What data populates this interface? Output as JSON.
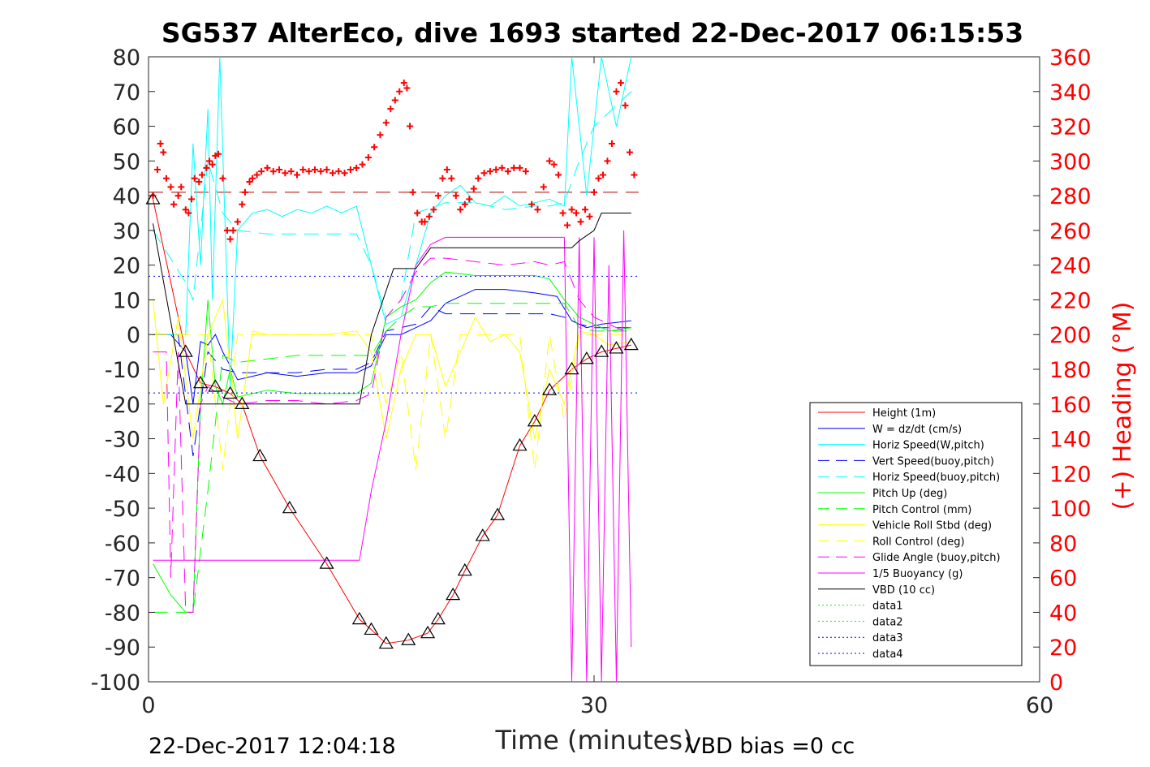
{
  "chart_data": {
    "type": "line",
    "title": "SG537 AlterEco, dive 1693 started 22-Dec-2017 06:15:53",
    "xlabel": "Time (minutes)",
    "ylabel_right": "(+) Heading (°M)",
    "xlim": [
      0,
      60
    ],
    "ylim": [
      -100,
      80
    ],
    "ylim_right": [
      0,
      360
    ],
    "x_ticks": [
      "0",
      "30",
      "60"
    ],
    "y_ticks": [
      "80",
      "70",
      "60",
      "50",
      "40",
      "30",
      "20",
      "10",
      "0",
      "-10",
      "-20",
      "-30",
      "-40",
      "-50",
      "-60",
      "-70",
      "-80",
      "-90",
      "-100"
    ],
    "y_ticks_right": [
      "360",
      "340",
      "320",
      "300",
      "280",
      "260",
      "240",
      "220",
      "200",
      "180",
      "160",
      "140",
      "120",
      "100",
      "80",
      "60",
      "40",
      "20",
      "0"
    ],
    "footer_left": "22-Dec-2017 12:04:18",
    "footer_right": "VBD bias =0 cc",
    "legend_position": "bottom-right",
    "grid": false,
    "heading_reference": 282,
    "series": [
      {
        "name": "Height (1m)",
        "color": "#ff0000",
        "style": "solid",
        "x": [
          0.3,
          2.5,
          3.5,
          4.5,
          5.5,
          6.3,
          7.5,
          9.5,
          12,
          14.2,
          15,
          16,
          17.5,
          18.8,
          19.5,
          20.5,
          21.3,
          22.5,
          23.5,
          25,
          26,
          27,
          28.5,
          29.5,
          30.5,
          31.5,
          32.5
        ],
        "y": [
          39,
          -5,
          -14,
          -15,
          -17,
          -20,
          -35,
          -50,
          -66,
          -82,
          -85,
          -89,
          -88,
          -86,
          -82,
          -75,
          -68,
          -58,
          -52,
          -32,
          -25,
          -16,
          -10,
          -7,
          -5,
          -4,
          -3
        ]
      },
      {
        "name": "W = dz/dt (cm/s)",
        "color": "#0000ff",
        "style": "solid",
        "x": [
          0.3,
          1.5,
          2.5,
          3,
          3.5,
          4,
          4.5,
          5,
          6,
          7,
          8,
          10,
          12,
          14,
          15,
          16,
          17,
          18,
          19,
          20,
          22,
          24,
          26,
          27.5,
          28.5,
          29.5,
          30.5,
          32.5
        ],
        "y": [
          0,
          0,
          -5,
          -20,
          -2,
          -3,
          0,
          -5,
          -13,
          -12,
          -11,
          -12,
          -11,
          -11,
          -9,
          0,
          0,
          2,
          4,
          9,
          13,
          13,
          12,
          11,
          4,
          2,
          3,
          4
        ]
      },
      {
        "name": "Horiz Speed(W,pitch)",
        "color": "#00ffff",
        "style": "solid",
        "x": [
          0.3,
          2.5,
          3,
          3.5,
          4,
          4.3,
          4.8,
          5.5,
          6,
          7,
          8,
          9,
          10,
          11,
          12,
          13,
          14,
          15,
          16,
          17,
          18,
          19,
          20,
          21,
          22,
          23,
          24,
          25,
          26,
          27,
          28,
          28.5,
          29.5,
          30.5,
          31.5,
          32.5
        ],
        "y": [
          0,
          0,
          55,
          20,
          65,
          10,
          80,
          -15,
          30,
          35,
          36,
          34,
          36,
          35,
          37,
          35,
          37,
          20,
          3,
          5,
          20,
          35,
          40,
          43,
          38,
          37,
          40,
          37,
          38,
          39,
          37,
          80,
          40,
          80,
          60,
          80
        ]
      },
      {
        "name": "Vert Speed(buoy,pitch)",
        "color": "#0000ff",
        "style": "dashed",
        "x": [
          0.3,
          2,
          3,
          4,
          5,
          6,
          8,
          10,
          12,
          14,
          15,
          16,
          18,
          19,
          20,
          22,
          24,
          26,
          27,
          28,
          29,
          30,
          32.5
        ],
        "y": [
          0,
          0,
          -35,
          -5,
          -10,
          -11,
          -11,
          -11,
          -10,
          -10,
          -8,
          1,
          3,
          8,
          6,
          6,
          6,
          6,
          6,
          5,
          3,
          2,
          2
        ]
      },
      {
        "name": "Horiz Speed(buoy,pitch)",
        "color": "#00ffff",
        "style": "dashed",
        "x": [
          0.3,
          2.5,
          3,
          4,
          5,
          6,
          8,
          10,
          12,
          14,
          15,
          16,
          17,
          18,
          20,
          22,
          24,
          26,
          27,
          28,
          29,
          30,
          32.5
        ],
        "y": [
          30,
          15,
          10,
          50,
          35,
          30,
          29,
          29,
          29,
          29,
          20,
          5,
          10,
          35,
          38,
          38,
          36,
          37,
          37,
          38,
          50,
          60,
          70
        ]
      },
      {
        "name": "Pitch Up (deg)",
        "color": "#00ff00",
        "style": "solid",
        "x": [
          0.3,
          1.5,
          2.5,
          3,
          3.5,
          4,
          4.5,
          5,
          5.5,
          6,
          7,
          8,
          10,
          12,
          14,
          15,
          16,
          17,
          18,
          19,
          20,
          22,
          24,
          26,
          27,
          28,
          29,
          30,
          31,
          32.5
        ],
        "y": [
          -66,
          -75,
          -80,
          -80,
          -20,
          10,
          -15,
          -20,
          -10,
          -18,
          -17,
          -16,
          -17,
          -17,
          -17,
          -14,
          5,
          8,
          10,
          15,
          18,
          17,
          17,
          17,
          16,
          10,
          5,
          3,
          1,
          2
        ]
      },
      {
        "name": "Pitch Control (mm)",
        "color": "#00ff00",
        "style": "dashed",
        "x": [
          0.3,
          2,
          3,
          4,
          5,
          6,
          8,
          10,
          12,
          14,
          15,
          16,
          17,
          18,
          19,
          20,
          22,
          24,
          26,
          27,
          28,
          29,
          30,
          32.5
        ],
        "y": [
          -80,
          -80,
          -80,
          -45,
          -6,
          -8,
          -7,
          -6,
          -6,
          -6,
          -6,
          1,
          5,
          8,
          8,
          9,
          9,
          9,
          9,
          9,
          9,
          2,
          1,
          1
        ]
      },
      {
        "name": "Vehicle Roll Stbd (deg)",
        "color": "#ffff00",
        "style": "solid",
        "x": [
          0.3,
          1,
          2,
          3,
          4,
          5,
          6,
          7,
          8,
          10,
          12,
          14,
          15,
          16,
          17,
          18,
          19,
          20,
          21,
          22,
          23,
          24,
          25,
          26,
          27,
          28,
          29,
          30,
          31,
          32.5
        ],
        "y": [
          10,
          -20,
          5,
          -30,
          0,
          10,
          -30,
          1,
          0,
          0,
          0,
          1,
          -5,
          -30,
          -10,
          0,
          0,
          -15,
          -5,
          5,
          -2,
          0,
          -5,
          -30,
          -10,
          -20,
          1,
          0,
          -3,
          -2
        ]
      },
      {
        "name": "Roll Control (deg)",
        "color": "#ffff00",
        "style": "dashed",
        "x": [
          0.3,
          2,
          3,
          4,
          5,
          6,
          8,
          10,
          12,
          14,
          15,
          16,
          17,
          18,
          19,
          20,
          21,
          22,
          23,
          24,
          25,
          26,
          27,
          28,
          29,
          30,
          32.5
        ],
        "y": [
          0,
          0,
          0,
          0,
          -39,
          0,
          0,
          0,
          0,
          0,
          0,
          -20,
          -5,
          -39,
          0,
          -30,
          0,
          0,
          0,
          0,
          0,
          -39,
          0,
          -25,
          0,
          0,
          0
        ]
      },
      {
        "name": "Glide Angle (buoy,pitch)",
        "color": "#ff00ff",
        "style": "dashed",
        "x": [
          0.3,
          1.2,
          1.5,
          2,
          2.5,
          3,
          3.5,
          4,
          5,
          6,
          8,
          10,
          12,
          14,
          15,
          16,
          17,
          18,
          19,
          20,
          22,
          24,
          26,
          27,
          28,
          29,
          30,
          32.5
        ],
        "y": [
          -5,
          -5,
          -70,
          -5,
          -80,
          -80,
          -20,
          -15,
          -18,
          -20,
          -19,
          -19,
          -20,
          -19,
          -17,
          5,
          10,
          18,
          22,
          22,
          21,
          20,
          21,
          20,
          21,
          10,
          5,
          0
        ]
      },
      {
        "name": "1/5 Buoyancy (g)",
        "color": "#ff00ff",
        "style": "solid",
        "x": [
          0.3,
          2.8,
          3,
          5,
          8,
          10,
          12,
          14.2,
          15,
          16,
          17,
          18,
          19,
          20,
          22,
          24,
          26,
          27,
          28,
          28.5,
          29,
          29.5,
          30,
          30.5,
          31,
          31.5,
          32,
          32.5
        ],
        "y": [
          -65,
          -65,
          -65,
          -65,
          -65,
          -65,
          -65,
          -65,
          -45,
          -25,
          0,
          20,
          26,
          28,
          28,
          28,
          28,
          28,
          28,
          -100,
          28,
          -100,
          28,
          -100,
          20,
          -100,
          30,
          -90
        ]
      },
      {
        "name": "VBD (10 cc)",
        "color": "#000000",
        "style": "solid",
        "x": [
          0.3,
          2.5,
          3,
          5,
          8,
          10,
          12,
          14.2,
          15,
          16.5,
          18,
          19,
          20,
          22,
          24,
          26,
          27,
          28.5,
          29,
          30,
          30.5,
          31.5,
          32.5
        ],
        "y": [
          32,
          -20,
          -20,
          -20,
          -20,
          -20,
          -20,
          -20,
          0,
          19,
          19,
          25,
          25,
          25,
          25,
          25,
          25,
          25,
          27,
          30,
          35,
          35,
          35
        ]
      },
      {
        "name": "data1",
        "color": "#00ff00",
        "style": "dotted",
        "x": [],
        "y": []
      },
      {
        "name": "data2",
        "color": "#00ff00",
        "style": "dotted",
        "x": [],
        "y": []
      },
      {
        "name": "data3",
        "color": "#0000ff",
        "style": "dotted",
        "x": [
          0,
          33
        ],
        "y": [
          16.8,
          16.8
        ]
      },
      {
        "name": "data4",
        "color": "#0000ff",
        "style": "dotted",
        "x": [
          0,
          33
        ],
        "y": [
          -16.8,
          -16.8
        ]
      }
    ],
    "heading_points": {
      "x": [
        0.3,
        0.6,
        0.8,
        1.0,
        1.2,
        1.5,
        1.7,
        2.0,
        2.2,
        2.5,
        2.7,
        2.9,
        3.1,
        3.4,
        3.6,
        3.9,
        4.1,
        4.3,
        4.5,
        4.7,
        5.0,
        5.3,
        5.5,
        5.7,
        6.0,
        6.3,
        6.5,
        6.8,
        7.0,
        7.3,
        7.6,
        8.0,
        8.4,
        8.8,
        9.2,
        9.6,
        10.0,
        10.4,
        10.8,
        11.2,
        11.6,
        12.0,
        12.4,
        12.8,
        13.2,
        13.6,
        14.0,
        14.4,
        14.8,
        15.2,
        15.6,
        16.0,
        16.3,
        16.6,
        16.9,
        17.2,
        17.4,
        17.6,
        17.8,
        18.1,
        18.4,
        18.6,
        18.9,
        19.2,
        19.5,
        19.8,
        20.1,
        20.4,
        20.7,
        21.0,
        21.3,
        21.6,
        21.9,
        22.2,
        22.6,
        23.0,
        23.4,
        23.8,
        24.2,
        24.6,
        25.0,
        25.4,
        25.8,
        26.2,
        26.6,
        27.0,
        27.3,
        27.6,
        27.9,
        28.2,
        28.5,
        28.8,
        29.1,
        29.4,
        29.7,
        30.0,
        30.3,
        30.6,
        30.9,
        31.2,
        31.5,
        31.8,
        32.1,
        32.4,
        32.7
      ],
      "y": [
        280,
        295,
        310,
        305,
        290,
        285,
        275,
        280,
        285,
        272,
        270,
        278,
        290,
        288,
        292,
        296,
        300,
        298,
        303,
        304,
        290,
        260,
        255,
        260,
        265,
        275,
        282,
        288,
        290,
        292,
        294,
        296,
        294,
        295,
        293,
        294,
        292,
        295,
        294,
        295,
        294,
        295,
        293,
        294,
        293,
        295,
        296,
        298,
        302,
        308,
        315,
        322,
        330,
        335,
        340,
        345,
        342,
        320,
        282,
        270,
        265,
        265,
        268,
        272,
        280,
        290,
        295,
        290,
        280,
        272,
        275,
        278,
        284,
        290,
        293,
        294,
        295,
        296,
        294,
        296,
        296,
        294,
        275,
        272,
        285,
        300,
        298,
        292,
        270,
        263,
        272,
        270,
        265,
        272,
        268,
        282,
        290,
        292,
        300,
        310,
        340,
        345,
        332,
        305,
        292
      ]
    }
  }
}
